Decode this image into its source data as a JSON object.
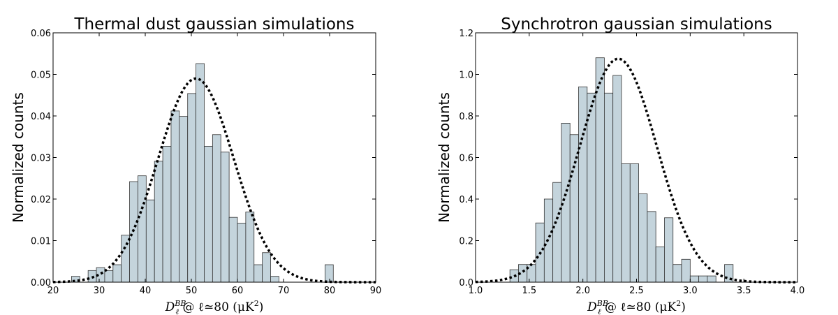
{
  "chart_data": [
    {
      "type": "bar",
      "title": "Thermal dust gaussian simulations",
      "ylabel": "Normalized counts",
      "xlabel": {
        "main": "D",
        "sup": "BB",
        "sub": "ℓ",
        "rest": " @ ℓ≃80 (μK",
        "power": "2",
        "close": ")"
      },
      "xlim": [
        20,
        90
      ],
      "ylim": [
        0,
        0.06
      ],
      "xticks": [
        "20",
        "30",
        "40",
        "50",
        "60",
        "70",
        "80",
        "90"
      ],
      "yticks": [
        "0.00",
        "0.01",
        "0.02",
        "0.03",
        "0.04",
        "0.05",
        "0.06"
      ],
      "bin_width": 1.8,
      "bins": [
        [
          24.0,
          0.0014
        ],
        [
          27.6,
          0.0028
        ],
        [
          29.4,
          0.0035
        ],
        [
          31.2,
          0.0028
        ],
        [
          33.0,
          0.0042
        ],
        [
          34.8,
          0.0113
        ],
        [
          36.6,
          0.0242
        ],
        [
          38.4,
          0.0256
        ],
        [
          40.2,
          0.0198
        ],
        [
          42.0,
          0.0291
        ],
        [
          43.8,
          0.0327
        ],
        [
          45.6,
          0.0412
        ],
        [
          47.4,
          0.0399
        ],
        [
          49.2,
          0.0454
        ],
        [
          51.0,
          0.0526
        ],
        [
          52.8,
          0.0327
        ],
        [
          54.6,
          0.0355
        ],
        [
          56.4,
          0.0313
        ],
        [
          58.2,
          0.0156
        ],
        [
          60.0,
          0.0142
        ],
        [
          61.8,
          0.0169
        ],
        [
          63.6,
          0.0042
        ],
        [
          65.4,
          0.0071
        ],
        [
          67.2,
          0.0014
        ],
        [
          79.0,
          0.0042
        ]
      ],
      "gaussian": {
        "mean": 51.0,
        "sigma": 8.2,
        "amplitude": 0.049
      },
      "bar_color": "#c4d4dc",
      "edge_color": "#333333"
    },
    {
      "type": "bar",
      "title": "Synchrotron gaussian simulations",
      "ylabel": "Normalized counts",
      "xlabel": {
        "main": "D",
        "sup": "BB",
        "sub": "ℓ",
        "rest": " @ ℓ≃80 (μK",
        "power": "2",
        "close": ")"
      },
      "xlim": [
        1.0,
        4.0
      ],
      "ylim": [
        0,
        1.2
      ],
      "xticks": [
        "1.0",
        "1.5",
        "2.0",
        "2.5",
        "3.0",
        "3.5",
        "4.0"
      ],
      "yticks": [
        "0.0",
        "0.2",
        "0.4",
        "0.6",
        "0.8",
        "1.0",
        "1.2"
      ],
      "bin_width": 0.08,
      "bins": [
        [
          1.32,
          0.06
        ],
        [
          1.4,
          0.085
        ],
        [
          1.48,
          0.085
        ],
        [
          1.56,
          0.285
        ],
        [
          1.64,
          0.4
        ],
        [
          1.72,
          0.48
        ],
        [
          1.8,
          0.765
        ],
        [
          1.88,
          0.71
        ],
        [
          1.96,
          0.94
        ],
        [
          2.04,
          0.91
        ],
        [
          2.12,
          1.08
        ],
        [
          2.2,
          0.91
        ],
        [
          2.28,
          0.995
        ],
        [
          2.36,
          0.57
        ],
        [
          2.44,
          0.57
        ],
        [
          2.52,
          0.425
        ],
        [
          2.6,
          0.34
        ],
        [
          2.68,
          0.17
        ],
        [
          2.76,
          0.31
        ],
        [
          2.84,
          0.085
        ],
        [
          2.92,
          0.11
        ],
        [
          3.0,
          0.03
        ],
        [
          3.08,
          0.03
        ],
        [
          3.16,
          0.03
        ],
        [
          3.32,
          0.085
        ]
      ],
      "gaussian": {
        "mean": 2.33,
        "sigma": 0.36,
        "amplitude": 1.075
      },
      "bar_color": "#c4d4dc",
      "edge_color": "#333333"
    }
  ]
}
